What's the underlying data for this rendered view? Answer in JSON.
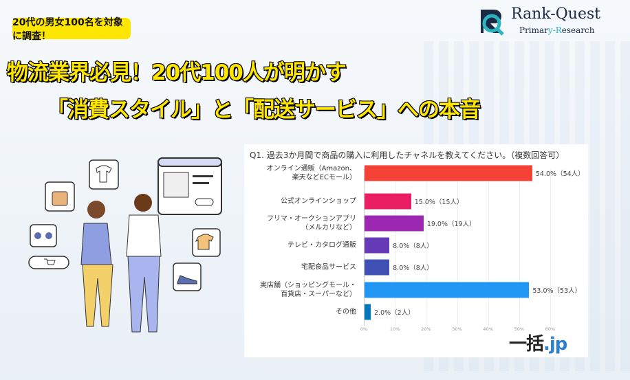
{
  "badge": "20代の男女100名を対象に調査！",
  "headline": {
    "line1": "物流業界必見！20代100人が明かす",
    "line2": "「消費スタイル」と「配送サービス」への本音"
  },
  "logo": {
    "name": "Rank-Quest",
    "sub_a": "Primar",
    "sub_b": "y-R",
    "sub_c": "esearch"
  },
  "brand": {
    "main": "一括",
    "suffix": ".jp"
  },
  "chart_data": {
    "type": "bar",
    "orientation": "horizontal",
    "title": "Q1. 過去3か月間で商品の購入に利用したチャネルを教えてください。（複数回答可）",
    "categories": [
      [
        "オンライン通販（Amazon、",
        "楽天などECモール）"
      ],
      [
        "公式オンラインショップ"
      ],
      [
        "フリマ・オークションアプリ",
        "（メルカリなど）"
      ],
      [
        "テレビ・カタログ通販"
      ],
      [
        "宅配食品サービス"
      ],
      [
        "実店舗（ショッピングモール・",
        "百貨店・スーパーなど）"
      ],
      [
        "その他"
      ]
    ],
    "values": [
      54.0,
      15.0,
      19.0,
      8.0,
      8.0,
      53.0,
      2.0
    ],
    "data_labels": [
      "54.0%（54人）",
      "15.0%（15人）",
      "19.0%（19人）",
      "8.0%（8人）",
      "8.0%（8人）",
      "53.0%（53人）",
      "2.0%（2人）"
    ],
    "colors": [
      "#f44336",
      "#e91e63",
      "#9c27b0",
      "#673ab7",
      "#3f51b5",
      "#2196f3",
      "#0277bd"
    ],
    "xlim": [
      0,
      60
    ],
    "xticks": [
      "0%",
      "10%",
      "20%",
      "30%",
      "40%",
      "50%",
      "60%"
    ],
    "grid": true
  }
}
